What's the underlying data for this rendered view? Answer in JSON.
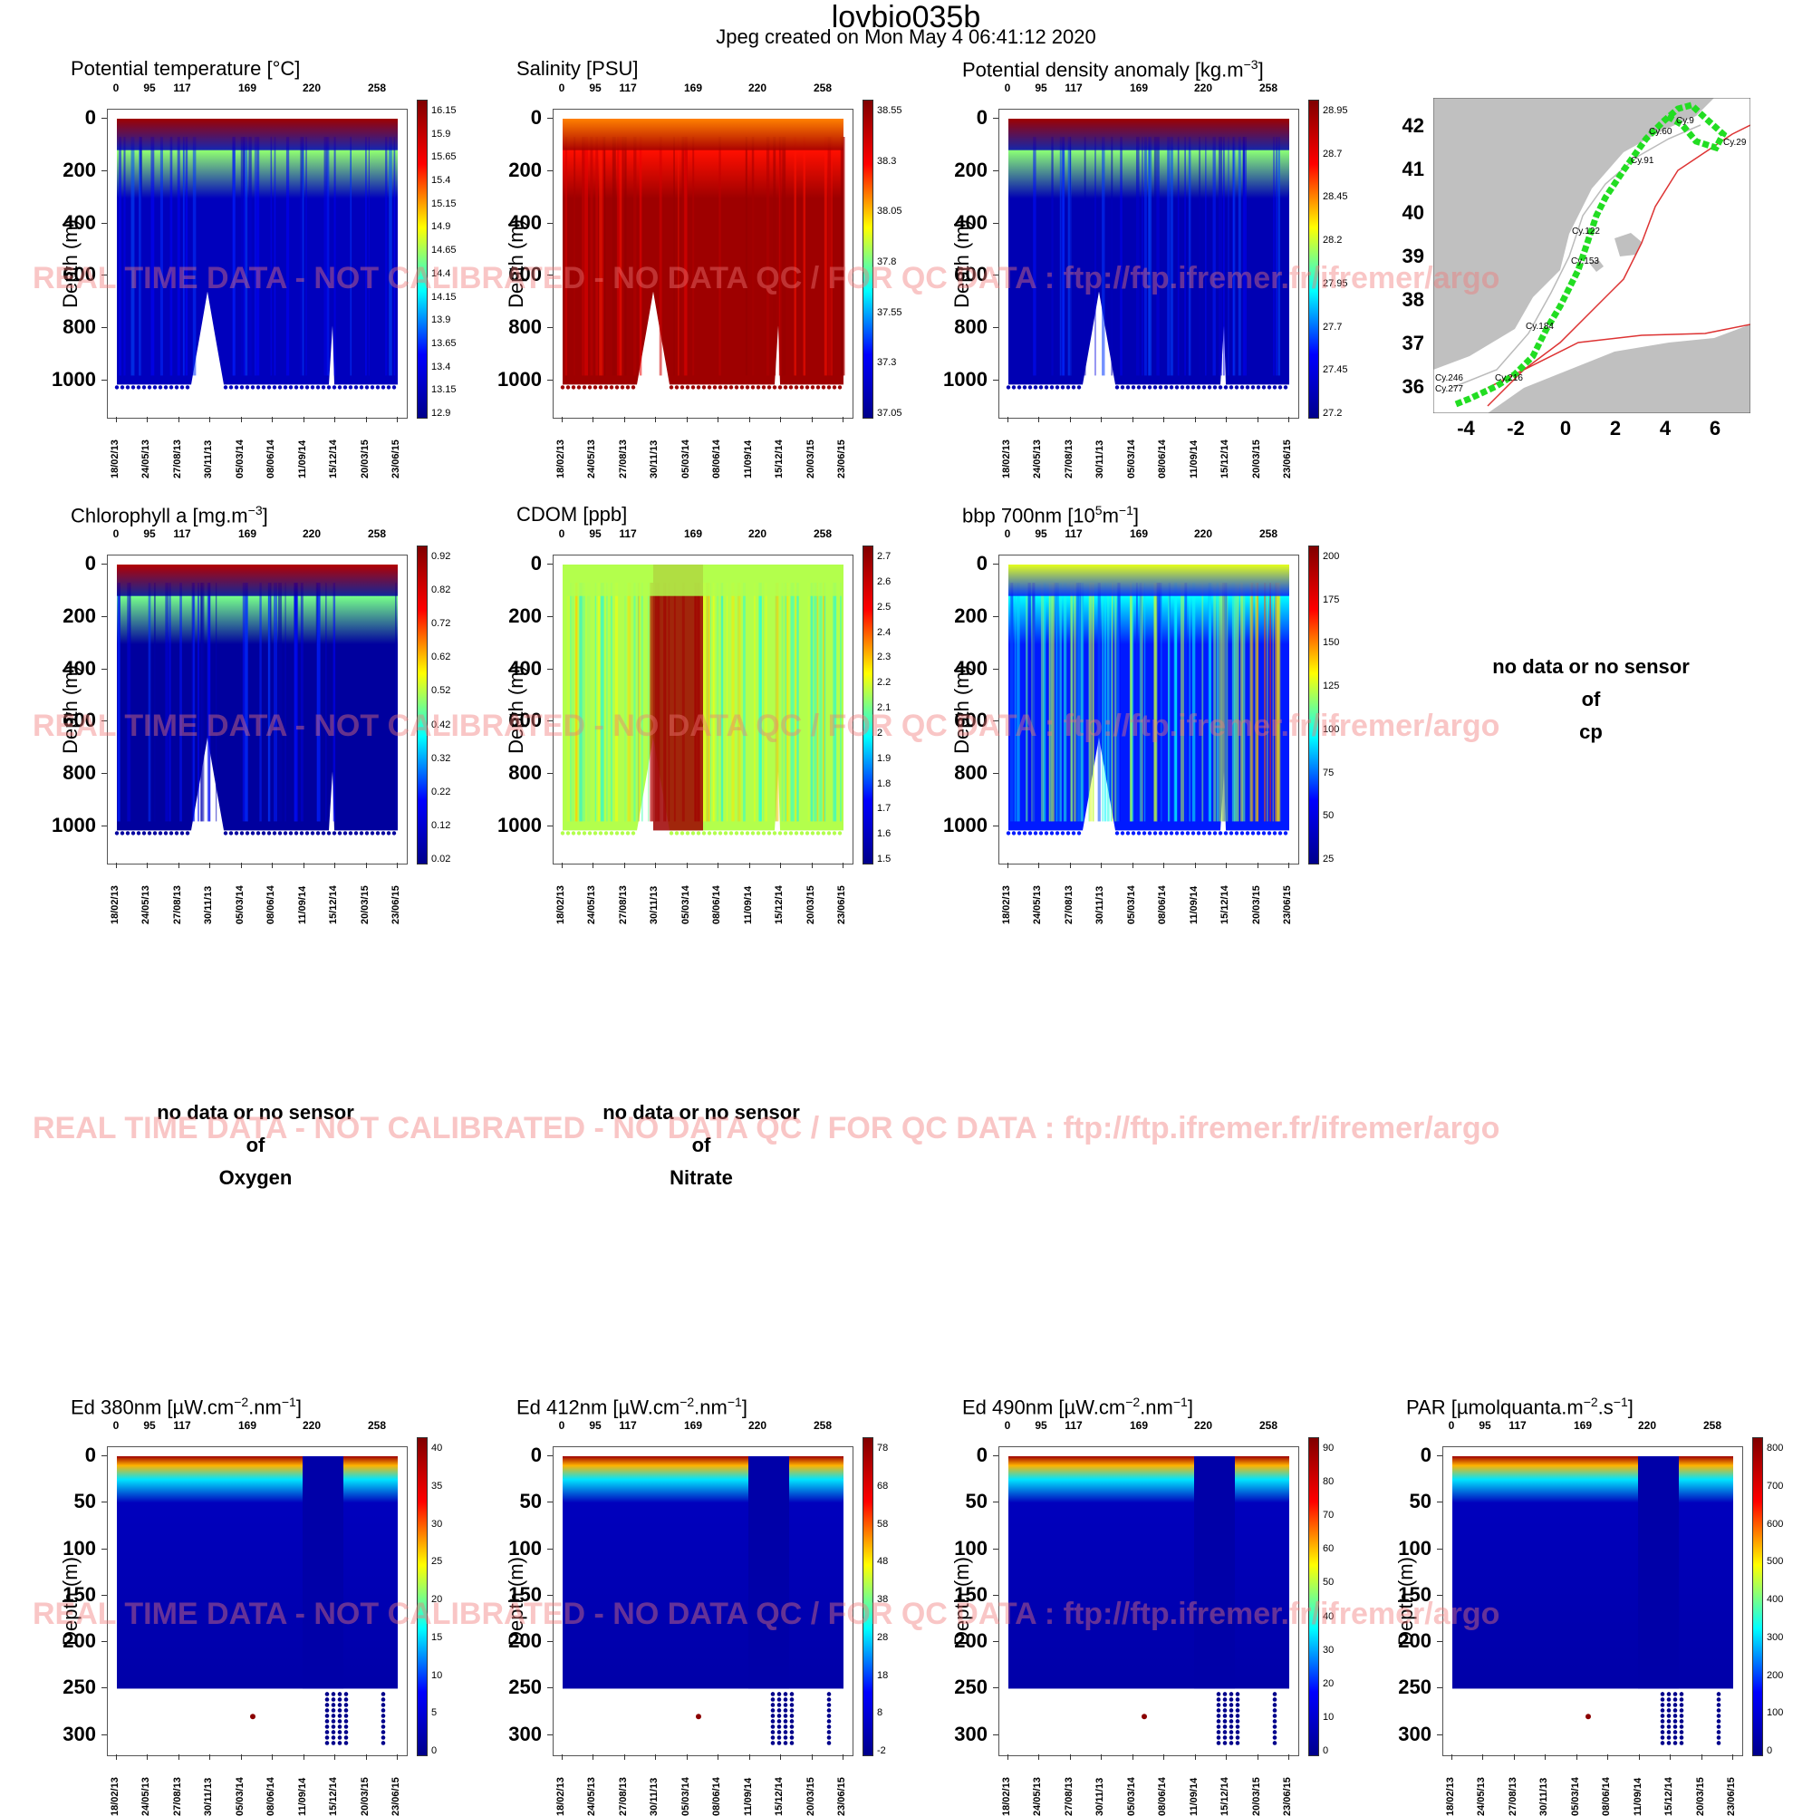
{
  "header": {
    "title": "lovbio035b",
    "subtitle": "Jpeg created on  Mon May  4 06:41:12 2020"
  },
  "watermark": "REAL TIME DATA - NOT CALIBRATED - NO DATA QC   /  FOR QC DATA : ftp://ftp.ifremer.fr/ifremer/argo",
  "common": {
    "y_axis_title": "Depth (m)",
    "cycle_ticks": [
      "0",
      "95",
      "117",
      "169",
      "220",
      "258"
    ],
    "date_ticks": [
      "18/02/13",
      "24/05/13",
      "27/08/13",
      "30/11/13",
      "05/03/14",
      "08/06/14",
      "11/09/14",
      "15/12/14",
      "20/03/15",
      "23/06/15"
    ],
    "depth_ticks_deep": [
      "0",
      "200",
      "400",
      "600",
      "800",
      "1000"
    ],
    "depth_ticks_light": [
      "0",
      "50",
      "100",
      "150",
      "200",
      "250",
      "300"
    ]
  },
  "nodata": {
    "cp": {
      "l1": "no data or no sensor",
      "l2": "of",
      "l3": "cp"
    },
    "oxygen": {
      "l1": "no data or no sensor",
      "l2": "of",
      "l3": "Oxygen"
    },
    "nitrate": {
      "l1": "no data or no sensor",
      "l2": "of",
      "l3": "Nitrate"
    }
  },
  "map": {
    "lat_ticks": [
      "42",
      "41",
      "40",
      "39",
      "38",
      "37",
      "36"
    ],
    "lon_ticks": [
      "-4",
      "-2",
      "0",
      "2",
      "4",
      "6"
    ],
    "cycle_labels": [
      "Cy.9",
      "Cy.60",
      "Cy.29",
      "Cy.91",
      "Cy.122",
      "Cy.153",
      "Cy.184",
      "Cy.216",
      "Cy.246",
      "Cy.277"
    ],
    "track_color": "#22dd22"
  },
  "chart_data": [
    {
      "type": "heatmap",
      "title": "Potential temperature [°C]",
      "colorbar": [
        "16.15",
        "15.9",
        "15.65",
        "15.4",
        "15.15",
        "14.9",
        "14.65",
        "14.4",
        "14.15",
        "13.9",
        "13.65",
        "13.4",
        "13.15",
        "12.9"
      ]
    },
    {
      "type": "heatmap",
      "title": "Salinity [PSU]",
      "colorbar": [
        "38.55",
        "38.3",
        "38.05",
        "37.8",
        "37.55",
        "37.3",
        "37.05"
      ]
    },
    {
      "type": "heatmap",
      "title": "Potential density anomaly [kg.m-3]",
      "colorbar": [
        "28.95",
        "28.7",
        "28.45",
        "28.2",
        "27.95",
        "27.7",
        "27.45",
        "27.2"
      ]
    },
    {
      "type": "heatmap",
      "title": "Chlorophyll a [mg.m-3]",
      "colorbar": [
        "0.92",
        "0.82",
        "0.72",
        "0.62",
        "0.52",
        "0.42",
        "0.32",
        "0.22",
        "0.12",
        "0.02"
      ]
    },
    {
      "type": "heatmap",
      "title": "CDOM  [ppb]",
      "colorbar": [
        "2.7",
        "2.6",
        "2.5",
        "2.4",
        "2.3",
        "2.2",
        "2.1",
        "2",
        "1.9",
        "1.8",
        "1.7",
        "1.6",
        "1.5"
      ]
    },
    {
      "type": "heatmap",
      "title": "bbp 700nm [10^5m^-1]",
      "colorbar": [
        "200",
        "175",
        "150",
        "125",
        "100",
        "75",
        "50",
        "25"
      ]
    },
    {
      "type": "heatmap",
      "title": "Ed 380nm [µW.cm-2.nm-1]",
      "colorbar": [
        "40",
        "35",
        "30",
        "25",
        "20",
        "15",
        "10",
        "5",
        "0"
      ]
    },
    {
      "type": "heatmap",
      "title": "Ed 412nm [µW.cm-2.nm-1]",
      "colorbar": [
        "78",
        "68",
        "58",
        "48",
        "38",
        "28",
        "18",
        "8",
        "-2"
      ]
    },
    {
      "type": "heatmap",
      "title": "Ed 490nm [µW.cm-2.nm-1]",
      "colorbar": [
        "90",
        "80",
        "70",
        "60",
        "50",
        "40",
        "30",
        "20",
        "10",
        "0"
      ]
    },
    {
      "type": "heatmap",
      "title": "PAR [µmolquanta.m-2.s-1]",
      "colorbar": [
        "800",
        "700",
        "600",
        "500",
        "400",
        "300",
        "200",
        "100",
        "0"
      ]
    }
  ]
}
